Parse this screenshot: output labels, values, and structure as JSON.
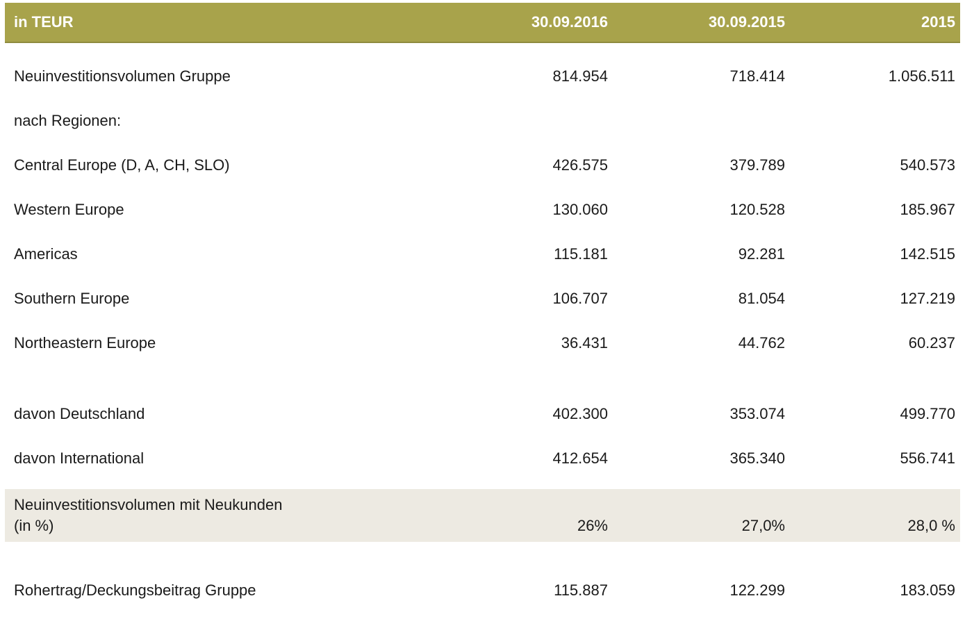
{
  "colors": {
    "header_background": "#a8a34b",
    "header_border_bottom": "#8f8b3f",
    "header_text": "#ffffff",
    "highlight_row_background": "#edeae2",
    "body_text": "#1a1a1a"
  },
  "table": {
    "header": {
      "unit_label": "in TEUR",
      "columns": [
        "30.09.2016",
        "30.09.2015",
        "2015"
      ]
    },
    "rows": [
      {
        "label": "Neuinvestitionsvolumen Gruppe",
        "values": [
          "814.954",
          "718.414",
          "1.056.511"
        ]
      },
      {
        "label": "nach Regionen:",
        "values": [
          "",
          "",
          ""
        ]
      },
      {
        "label": "Central Europe (D, A, CH, SLO)",
        "values": [
          "426.575",
          "379.789",
          "540.573"
        ]
      },
      {
        "label": "Western Europe",
        "values": [
          "130.060",
          "120.528",
          "185.967"
        ]
      },
      {
        "label": "Americas",
        "values": [
          "115.181",
          "92.281",
          "142.515"
        ]
      },
      {
        "label": "Southern Europe",
        "values": [
          "106.707",
          "81.054",
          "127.219"
        ]
      },
      {
        "label": "Northeastern Europe",
        "values": [
          "36.431",
          "44.762",
          "60.237"
        ]
      },
      {
        "type": "spacer"
      },
      {
        "label": "davon Deutschland",
        "values": [
          "402.300",
          "353.074",
          "499.770"
        ]
      },
      {
        "label": "davon International",
        "values": [
          "412.654",
          "365.340",
          "556.741"
        ]
      },
      {
        "label": "Neuinvestitionsvolumen mit Neukunden",
        "sublabel": "(in %)",
        "values": [
          "26%",
          "27,0%",
          "28,0 %"
        ],
        "highlight": true
      },
      {
        "type": "spacer"
      },
      {
        "label": "Rohertrag/Deckungsbeitrag Gruppe",
        "values": [
          "115.887",
          "122.299",
          "183.059"
        ]
      }
    ]
  }
}
